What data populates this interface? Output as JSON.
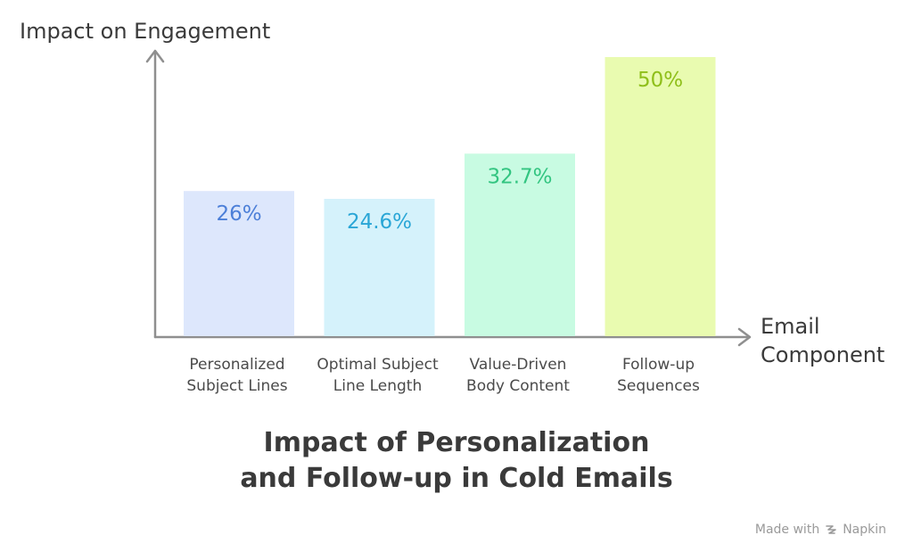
{
  "chart_data": {
    "type": "bar",
    "title_lines": [
      "Impact of Personalization",
      "and Follow-up in Cold Emails"
    ],
    "ylabel": "Impact on Engagement",
    "xlabel_lines": [
      "Email",
      "Component"
    ],
    "categories": [
      [
        "Personalized",
        "Subject Lines"
      ],
      [
        "Optimal Subject",
        "Line Length"
      ],
      [
        "Value-Driven",
        "Body Content"
      ],
      [
        "Follow-up",
        "Sequences"
      ]
    ],
    "values": [
      26,
      24.6,
      32.7,
      50
    ],
    "value_labels": [
      "26%",
      "24.6%",
      "32.7%",
      "50%"
    ],
    "ylim": [
      0,
      52
    ],
    "grid": false,
    "bar_colors": [
      "#dde7fc",
      "#d5f2fb",
      "#c8fbe2",
      "#e9fbb0"
    ],
    "label_colors": [
      "#4c7fd8",
      "#2aa6d6",
      "#33c581",
      "#8fbf1a"
    ]
  },
  "footer": {
    "made_with": "Made with",
    "brand": "Napkin",
    "icon": "napkin-logo-icon"
  }
}
